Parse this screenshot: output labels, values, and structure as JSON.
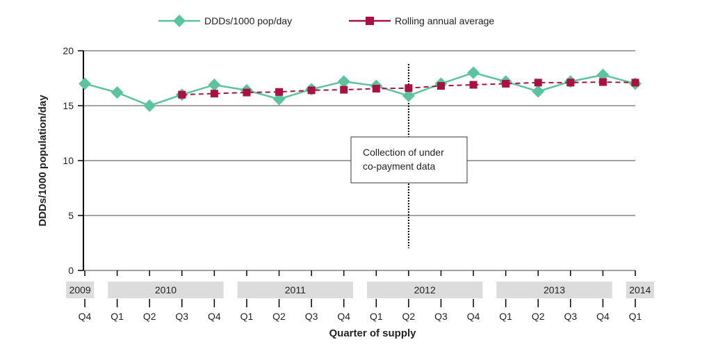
{
  "chart_data": {
    "type": "line",
    "ylabel": "DDDs/1000 population/day",
    "xlabel": "Quarter of supply",
    "ylim": [
      0,
      20
    ],
    "yticks": [
      0,
      5,
      10,
      15,
      20
    ],
    "grid": true,
    "legend": "top",
    "quarters": [
      "Q4",
      "Q1",
      "Q2",
      "Q3",
      "Q4",
      "Q1",
      "Q2",
      "Q3",
      "Q4",
      "Q1",
      "Q2",
      "Q3",
      "Q4",
      "Q1",
      "Q2",
      "Q3",
      "Q4",
      "Q1"
    ],
    "years": [
      {
        "label": "2009",
        "start": 0,
        "end": 0
      },
      {
        "label": "2010",
        "start": 1,
        "end": 4
      },
      {
        "label": "2011",
        "start": 5,
        "end": 8
      },
      {
        "label": "2012",
        "start": 9,
        "end": 12
      },
      {
        "label": "2013",
        "start": 13,
        "end": 16
      },
      {
        "label": "2014",
        "start": 17,
        "end": 17
      }
    ],
    "series": [
      {
        "name": "DDDs/1000 pop/day",
        "color": "#5cc3a0",
        "marker": "diamond",
        "values": [
          17.0,
          16.2,
          15.0,
          16.0,
          16.9,
          16.4,
          15.6,
          16.5,
          17.2,
          16.8,
          15.9,
          17.0,
          18.0,
          17.2,
          16.3,
          17.2,
          17.8,
          17.0
        ]
      },
      {
        "name": "Rolling annual average",
        "color": "#a8123e",
        "marker": "square",
        "dashed": true,
        "values": [
          null,
          null,
          null,
          16.0,
          16.1,
          16.2,
          16.25,
          16.4,
          16.45,
          16.55,
          16.6,
          16.8,
          16.9,
          17.0,
          17.1,
          17.1,
          17.15,
          17.1
        ]
      }
    ],
    "annotation": {
      "text_lines": [
        "Collection of under",
        "co-payment data"
      ],
      "at_index": 10
    }
  }
}
